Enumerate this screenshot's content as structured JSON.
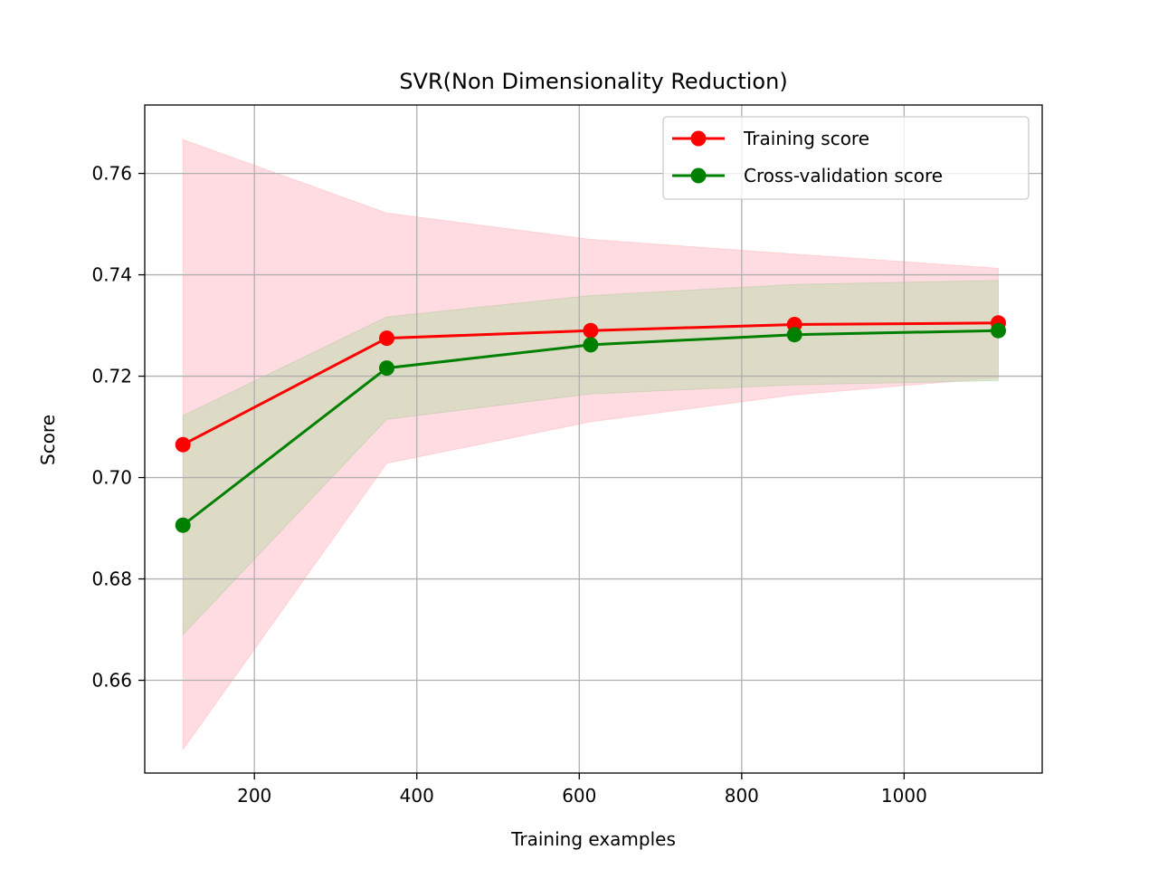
{
  "chart_data": {
    "type": "line",
    "title": "SVR(Non Dimensionality Reduction)",
    "xlabel": "Training examples",
    "ylabel": "Score",
    "xlim": [
      65,
      1170
    ],
    "ylim": [
      0.6417,
      0.7735
    ],
    "xticks": [
      200,
      400,
      600,
      800,
      1000
    ],
    "xtick_labels": [
      "200",
      "400",
      "600",
      "800",
      "1000"
    ],
    "yticks": [
      0.66,
      0.68,
      0.7,
      0.72,
      0.74,
      0.76
    ],
    "ytick_labels": [
      "0.66",
      "0.68",
      "0.70",
      "0.72",
      "0.74",
      "0.76"
    ],
    "grid": true,
    "legend_position": "top-right",
    "x": [
      112,
      363,
      614,
      865,
      1116
    ],
    "series": [
      {
        "name": "Training score",
        "color": "#ff0000",
        "band_color": "#ffc0c8",
        "values": [
          0.7065,
          0.7275,
          0.729,
          0.7302,
          0.7305
        ],
        "band_upper": [
          0.7667,
          0.7522,
          0.747,
          0.7441,
          0.7413
        ],
        "band_lower": [
          0.6463,
          0.7028,
          0.711,
          0.7163,
          0.7197
        ]
      },
      {
        "name": "Cross-validation score",
        "color": "#008000",
        "band_color": "#c6d9b4",
        "values": [
          0.6906,
          0.7216,
          0.7262,
          0.7282,
          0.729
        ],
        "band_upper": [
          0.7122,
          0.7317,
          0.7359,
          0.7381,
          0.7389
        ],
        "band_lower": [
          0.669,
          0.7115,
          0.7165,
          0.7183,
          0.7191
        ]
      }
    ]
  }
}
